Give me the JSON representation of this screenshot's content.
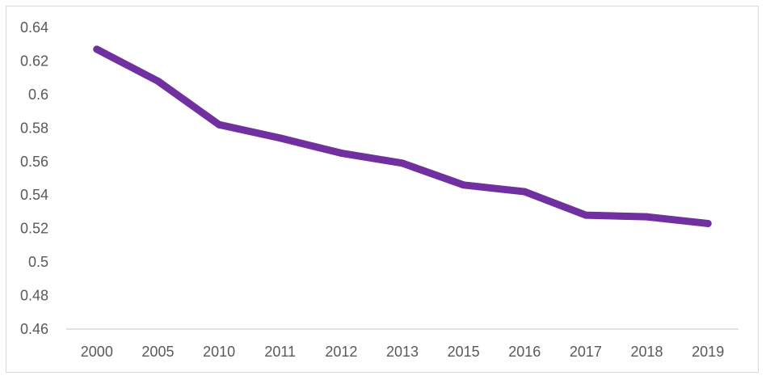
{
  "chart_data": {
    "type": "line",
    "title": "",
    "xlabel": "",
    "ylabel": "",
    "categories": [
      "2000",
      "2005",
      "2010",
      "2011",
      "2012",
      "2013",
      "2015",
      "2016",
      "2017",
      "2018",
      "2019"
    ],
    "series": [
      {
        "values": [
          0.627,
          0.608,
          0.582,
          0.574,
          0.565,
          0.559,
          0.546,
          0.542,
          0.528,
          0.527,
          0.523
        ],
        "color": "#7030a0"
      }
    ],
    "ylim": [
      0.46,
      0.64
    ],
    "yticks": [
      0.64,
      0.62,
      0.6,
      0.58,
      0.56,
      0.54,
      0.52,
      0.5,
      0.48,
      0.46
    ],
    "ytick_labels": [
      "0.64",
      "0.62",
      "0.6",
      "0.58",
      "0.56",
      "0.54",
      "0.52",
      "0.5",
      "0.48",
      "0.46"
    ],
    "grid": false,
    "legend": "none"
  }
}
